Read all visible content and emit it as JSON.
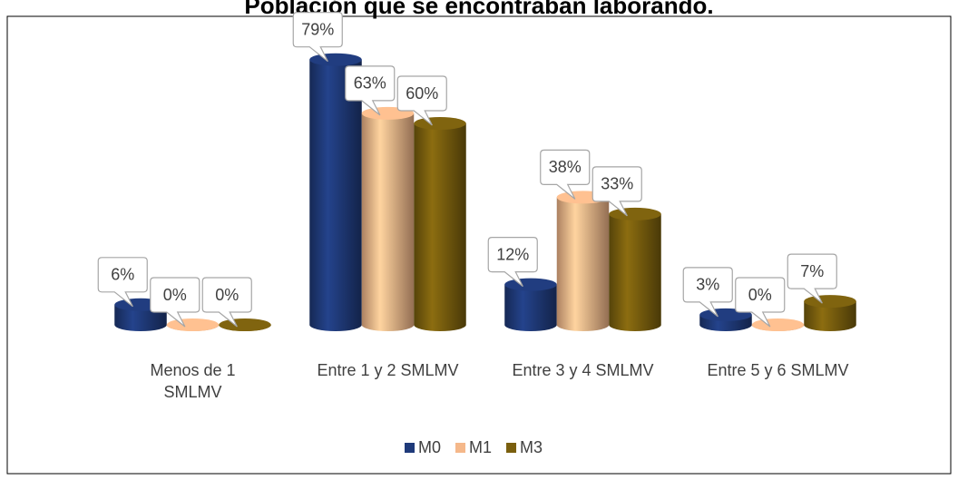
{
  "chart_data": {
    "type": "bar",
    "title": "Población que se encontraban laborando.",
    "categories": [
      "Menos de 1 SMLMV",
      "Entre 1 y 2 SMLMV",
      "Entre 3 y 4 SMLMV",
      "Entre 5 y 6 SMLMV"
    ],
    "series": [
      {
        "name": "M0",
        "color": "#1f3a7a",
        "values": [
          6,
          79,
          12,
          3
        ],
        "value_labels": [
          "6%",
          "79%",
          "12%",
          "3%"
        ]
      },
      {
        "name": "M1",
        "color": "#f5b88a",
        "values": [
          0,
          63,
          38,
          0
        ],
        "value_labels": [
          "0%",
          "63%",
          "38%",
          "0%"
        ]
      },
      {
        "name": "M3",
        "color": "#7a5f0e",
        "values": [
          0,
          60,
          33,
          7
        ],
        "value_labels": [
          "0%",
          "60%",
          "33%",
          "7%"
        ]
      }
    ]
  }
}
